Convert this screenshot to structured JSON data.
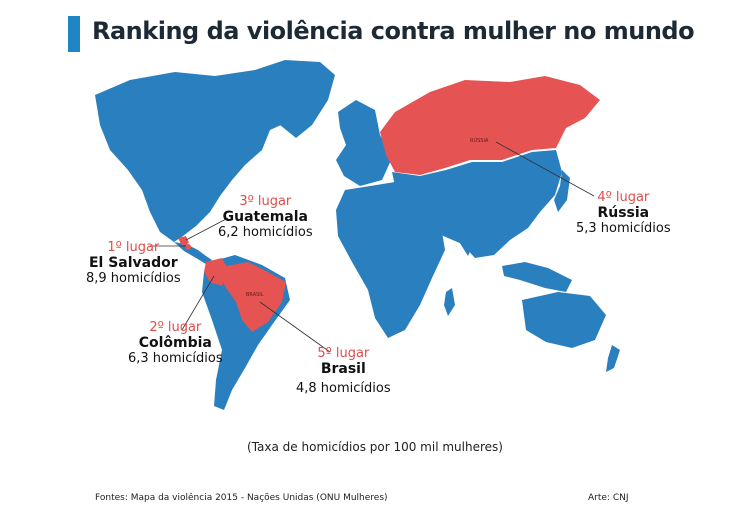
{
  "title": "Ranking da violência contra mulher no mundo",
  "colors": {
    "accent": "#1f86c3",
    "ranked_country": "#e55353",
    "other_land": "#2a7fbf",
    "rank_text": "#e04c4c"
  },
  "map_labels": {
    "russia": "RÚSSIA",
    "brazil": "BRASIL"
  },
  "rankings": [
    {
      "rank": "1º lugar",
      "country": "El Salvador",
      "value": "8,9 homicídios"
    },
    {
      "rank": "2º lugar",
      "country": "Colômbia",
      "value": "6,3 homicídios"
    },
    {
      "rank": "3º lugar",
      "country": "Guatemala",
      "value": "6,2 homicídios"
    },
    {
      "rank": "4º lugar",
      "country": "Rússia",
      "value": "5,3 homicídios"
    },
    {
      "rank": "5º lugar",
      "country": "Brasil",
      "value": "4,8 homicídios"
    }
  ],
  "subtitle": "(Taxa de homicídios por 100 mil mulheres)",
  "footer": {
    "sources": "Fontes: Mapa da violência 2015 - Nações Unidas (ONU Mulheres)",
    "art": "Arte: CNJ"
  }
}
